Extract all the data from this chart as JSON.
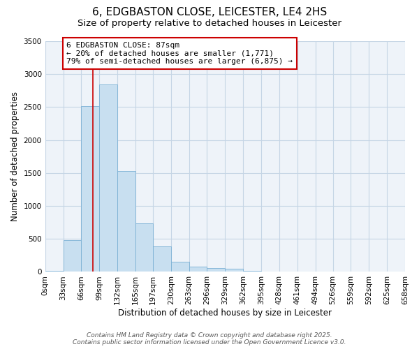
{
  "title": "6, EDGBASTON CLOSE, LEICESTER, LE4 2HS",
  "subtitle": "Size of property relative to detached houses in Leicester",
  "xlabel": "Distribution of detached houses by size in Leicester",
  "ylabel": "Number of detached properties",
  "bar_values": [
    20,
    480,
    2520,
    2840,
    1530,
    740,
    390,
    150,
    80,
    55,
    45,
    20,
    5,
    2,
    1,
    0,
    0,
    0,
    0,
    0
  ],
  "bin_edges": [
    0,
    33,
    66,
    99,
    132,
    165,
    197,
    230,
    263,
    296,
    329,
    362,
    395,
    428,
    461,
    494,
    526,
    559,
    592,
    625,
    658
  ],
  "x_labels": [
    "0sqm",
    "33sqm",
    "66sqm",
    "99sqm",
    "132sqm",
    "165sqm",
    "197sqm",
    "230sqm",
    "263sqm",
    "296sqm",
    "329sqm",
    "362sqm",
    "395sqm",
    "428sqm",
    "461sqm",
    "494sqm",
    "526sqm",
    "559sqm",
    "592sqm",
    "625sqm",
    "658sqm"
  ],
  "bar_color": "#c8dff0",
  "bar_edge_color": "#7ab0d4",
  "background_color": "#eef3f9",
  "grid_color": "#c5d5e5",
  "property_line_x": 87,
  "property_line_color": "#cc0000",
  "annotation_title": "6 EDGBASTON CLOSE: 87sqm",
  "annotation_line1": "← 20% of detached houses are smaller (1,771)",
  "annotation_line2": "79% of semi-detached houses are larger (6,875) →",
  "annotation_box_color": "#cc0000",
  "ylim": [
    0,
    3500
  ],
  "yticks": [
    0,
    500,
    1000,
    1500,
    2000,
    2500,
    3000,
    3500
  ],
  "footer_line1": "Contains HM Land Registry data © Crown copyright and database right 2025.",
  "footer_line2": "Contains public sector information licensed under the Open Government Licence v3.0.",
  "title_fontsize": 11,
  "subtitle_fontsize": 9.5,
  "axis_label_fontsize": 8.5,
  "tick_fontsize": 7.5,
  "annotation_fontsize": 8,
  "footer_fontsize": 6.5
}
